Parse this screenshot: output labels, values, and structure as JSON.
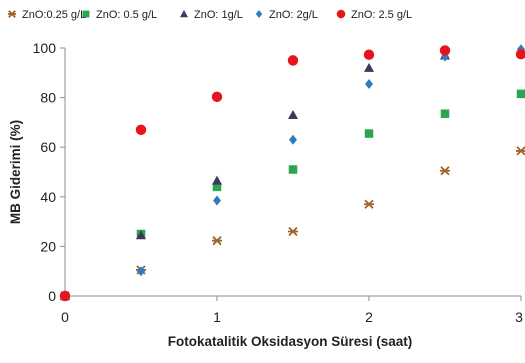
{
  "chart_data": {
    "type": "scatter",
    "title": "",
    "xlabel": "Fotokatalitik Oksidasyon Süresi (saat)",
    "ylabel": "MB Giderimi (%)",
    "xlim": [
      0,
      3
    ],
    "ylim": [
      0,
      100
    ],
    "xticks": [
      0,
      1,
      2,
      3
    ],
    "yticks": [
      0,
      20,
      40,
      60,
      80,
      100
    ],
    "grid": false,
    "legend_position": "top",
    "series": [
      {
        "name": "ZnO:0.25 g/L",
        "marker": "star",
        "color": "#a0642a",
        "x": [
          0,
          0.5,
          1,
          1.5,
          2,
          2.5,
          3
        ],
        "y": [
          0,
          10.5,
          22.3,
          26,
          37,
          50.5,
          58.5
        ]
      },
      {
        "name": "ZnO: 0.5 g/L",
        "marker": "square",
        "color": "#2ca553",
        "x": [
          0,
          0.5,
          1,
          1.5,
          2,
          2.5,
          3
        ],
        "y": [
          0,
          25,
          44,
          51,
          65.5,
          73.5,
          81.5
        ]
      },
      {
        "name": "ZnO: 1g/L",
        "marker": "triangle",
        "color": "#3b3a5c",
        "x": [
          0,
          0.5,
          1,
          1.5,
          2,
          2.5,
          3
        ],
        "y": [
          0,
          24.5,
          46.5,
          73,
          92,
          97,
          99
        ]
      },
      {
        "name": "ZnO: 2g/L",
        "marker": "diamond",
        "color": "#2f7bbf",
        "x": [
          0,
          0.5,
          1,
          1.5,
          2,
          2.5,
          3
        ],
        "y": [
          0,
          10,
          38.5,
          63,
          85.5,
          96.5,
          99.5
        ]
      },
      {
        "name": "ZnO: 2.5 g/L",
        "marker": "circle",
        "color": "#e8141b",
        "x": [
          0,
          0.5,
          1,
          1.5,
          2,
          2.5,
          3
        ],
        "y": [
          0,
          67,
          80.3,
          95,
          97.3,
          99,
          97.5
        ]
      }
    ]
  }
}
